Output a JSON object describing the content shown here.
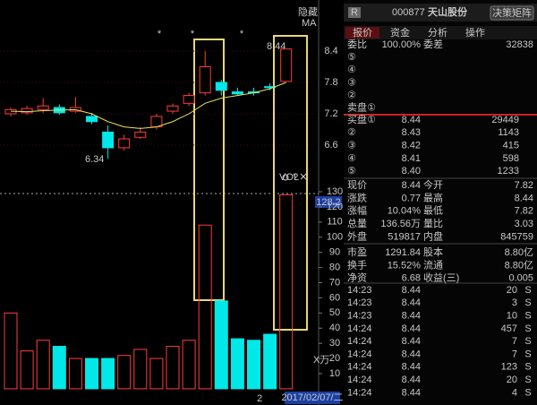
{
  "top_bar": {
    "hide": "隐藏",
    "badge": "R",
    "code": "000877",
    "name": "天山股份",
    "button": "决策矩阵"
  },
  "tabs": [
    "报价",
    "资金",
    "分析",
    "操作"
  ],
  "order_book": {
    "ratio_label": "委比",
    "ratio": "100.00%",
    "diff_label": "委差",
    "diff": "32838",
    "asks": [
      "⑤",
      "④",
      "③",
      "②",
      "卖盘①"
    ],
    "bids": [
      {
        "label": "买盘①",
        "price": "8.44",
        "volume": "29449"
      },
      {
        "label": "②",
        "price": "8.43",
        "volume": "1143"
      },
      {
        "label": "③",
        "price": "8.42",
        "volume": "415"
      },
      {
        "label": "④",
        "price": "8.41",
        "volume": "598"
      },
      {
        "label": "⑤",
        "price": "8.40",
        "volume": "1233"
      }
    ]
  },
  "stats": [
    [
      "现价",
      "8.44",
      "今开",
      "7.82"
    ],
    [
      "涨跌",
      "0.77",
      "最高",
      "8.44"
    ],
    [
      "涨幅",
      "10.04%",
      "最低",
      "7.82"
    ],
    [
      "总量",
      "136.56万",
      "量比",
      "3.03"
    ],
    [
      "外盘",
      "519817",
      "内盘",
      "845759"
    ],
    [
      "市盈",
      "1291.84",
      "股本",
      "8.80亿"
    ],
    [
      "换手",
      "15.52%",
      "流通",
      "8.80亿"
    ],
    [
      "净资",
      "6.68",
      "收益(三)",
      "0.005"
    ]
  ],
  "trades": [
    [
      "14:23",
      "8.44",
      "20",
      "S"
    ],
    [
      "14:23",
      "8.44",
      "3",
      "S"
    ],
    [
      "14:23",
      "8.44",
      "10",
      "S"
    ],
    [
      "14:24",
      "8.44",
      "457",
      "S"
    ],
    [
      "14:24",
      "8.44",
      "7",
      "S"
    ],
    [
      "14:24",
      "8.44",
      "7",
      "S"
    ],
    [
      "14:24",
      "8.44",
      "123",
      "S"
    ],
    [
      "14:24",
      "8.44",
      "20",
      "S"
    ],
    [
      "14:24",
      "8.44",
      "4",
      "S"
    ]
  ],
  "chart": {
    "price_ticks": [
      8.4,
      7.8,
      7.2,
      6.6
    ],
    "volume_ticks": [
      130,
      120,
      110,
      100,
      90,
      80,
      70,
      60,
      50,
      40,
      30,
      20,
      10
    ],
    "stars": [
      "*",
      "*",
      "*"
    ],
    "low_note": "6.34",
    "high_note": "8.44",
    "ma_label": "MA",
    "vol_label": "VOL",
    "help": "?",
    "vol_value": "128.2",
    "vol_unit": "X万",
    "page": "2",
    "date": "2017/02/07/二",
    "candles": [
      {
        "open": 7.2,
        "high": 7.32,
        "low": 7.15,
        "close": 7.28,
        "volume": 50
      },
      {
        "open": 7.22,
        "high": 7.35,
        "low": 7.18,
        "close": 7.3,
        "volume": 25
      },
      {
        "open": 7.28,
        "high": 7.5,
        "low": 7.22,
        "close": 7.35,
        "volume": 32
      },
      {
        "open": 7.32,
        "high": 7.38,
        "low": 7.18,
        "close": 7.22,
        "volume": 28
      },
      {
        "open": 7.25,
        "high": 7.52,
        "low": 7.22,
        "close": 7.32,
        "volume": 20
      },
      {
        "open": 7.15,
        "high": 7.22,
        "low": 7.0,
        "close": 7.05,
        "volume": 20
      },
      {
        "open": 6.85,
        "high": 6.98,
        "low": 6.34,
        "close": 6.55,
        "volume": 20
      },
      {
        "open": 6.55,
        "high": 6.8,
        "low": 6.5,
        "close": 6.72,
        "volume": 22
      },
      {
        "open": 6.75,
        "high": 6.95,
        "low": 6.72,
        "close": 6.85,
        "volume": 26
      },
      {
        "open": 6.95,
        "high": 7.2,
        "low": 6.9,
        "close": 7.15,
        "volume": 20
      },
      {
        "open": 7.25,
        "high": 7.4,
        "low": 7.2,
        "close": 7.35,
        "volume": 28
      },
      {
        "open": 7.4,
        "high": 7.6,
        "low": 7.35,
        "close": 7.55,
        "volume": 32
      },
      {
        "open": 7.6,
        "high": 8.4,
        "low": 7.55,
        "close": 8.1,
        "volume": 108
      },
      {
        "open": 7.8,
        "high": 7.85,
        "low": 7.55,
        "close": 7.65,
        "volume": 58
      },
      {
        "open": 7.62,
        "high": 7.7,
        "low": 7.55,
        "close": 7.58,
        "volume": 33
      },
      {
        "open": 7.62,
        "high": 7.7,
        "low": 7.55,
        "close": 7.6,
        "volume": 32
      },
      {
        "open": 7.72,
        "high": 7.78,
        "low": 7.65,
        "close": 7.7,
        "volume": 36
      },
      {
        "open": 7.82,
        "high": 8.44,
        "low": 7.82,
        "close": 8.44,
        "volume": 128
      }
    ],
    "ma": [
      7.25,
      7.24,
      7.26,
      7.27,
      7.28,
      7.2,
      7.05,
      6.95,
      6.92,
      6.95,
      7.05,
      7.2,
      7.4,
      7.5,
      7.55,
      7.6,
      7.68,
      7.8
    ]
  }
}
